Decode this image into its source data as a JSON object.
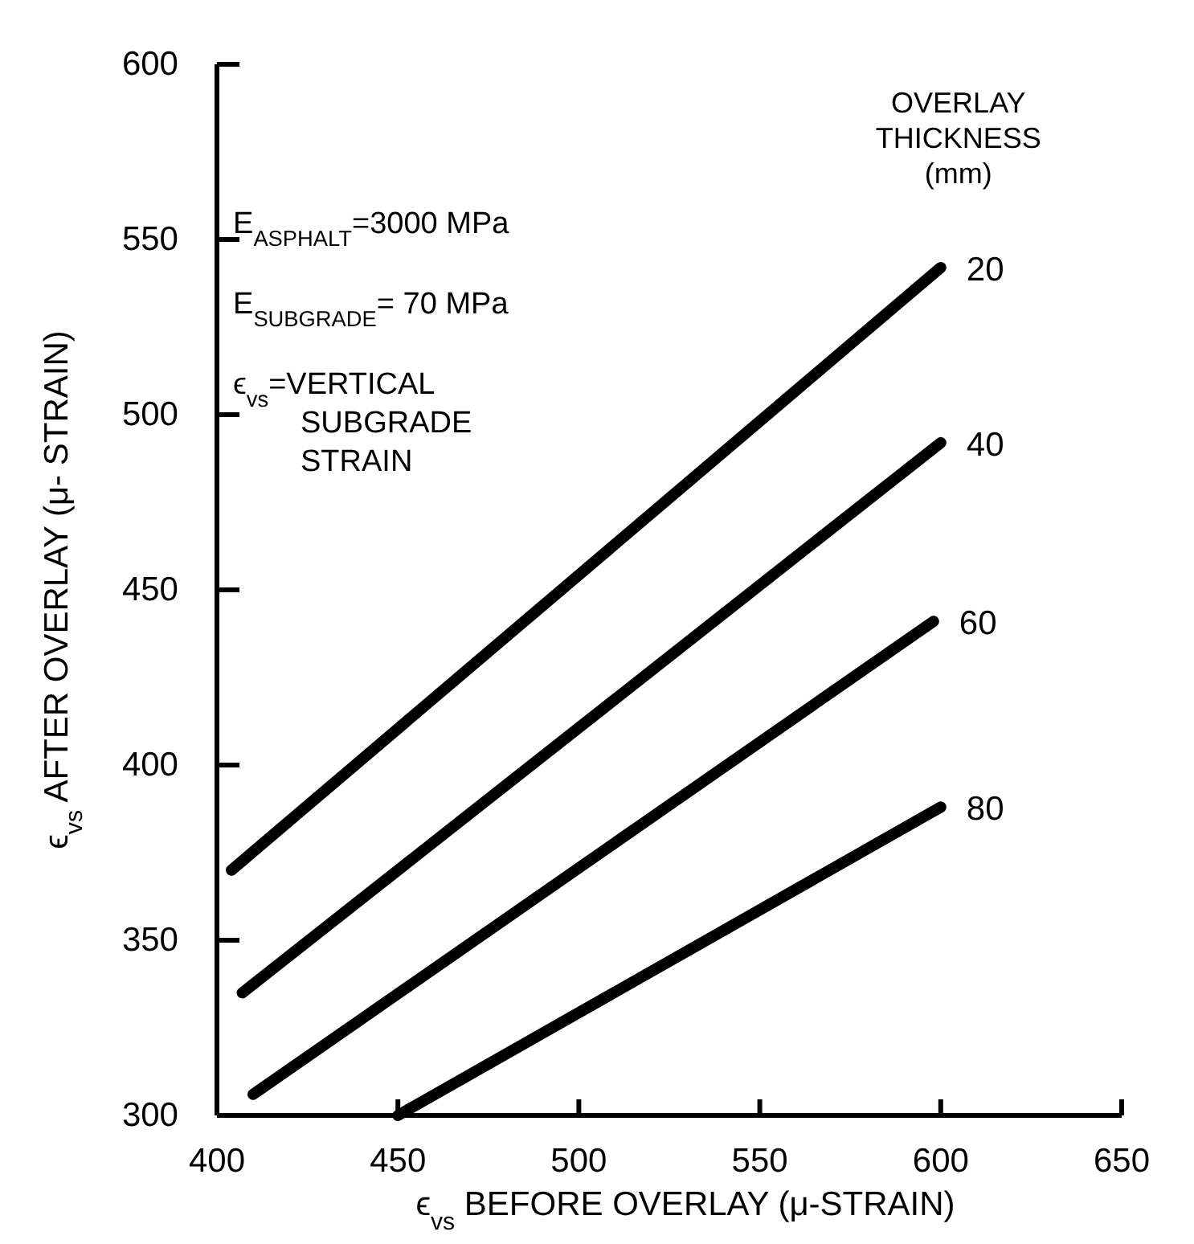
{
  "chart_data": {
    "type": "line",
    "xlabel": "ϵ$_{vs}$ BEFORE OVERLAY (μ-STRAIN)",
    "ylabel": "ϵ$_{vs}$ AFTER OVERLAY (μ- STRAIN)",
    "legend_title": "OVERLAY THICKNESS (mm)",
    "legend": false,
    "grid": false,
    "marker": "none",
    "line_style": "solid",
    "xlim": [
      400,
      650
    ],
    "ylim": [
      300,
      600
    ],
    "xticks": [
      400,
      450,
      500,
      550,
      600,
      650
    ],
    "yticks": [
      300,
      350,
      400,
      450,
      500,
      550,
      600
    ],
    "series": [
      {
        "name": "20",
        "color": "#000000",
        "x": [
          404,
          600
        ],
        "values": [
          370,
          542
        ]
      },
      {
        "name": "40",
        "color": "#000000",
        "x": [
          407,
          600
        ],
        "values": [
          335,
          492
        ]
      },
      {
        "name": "60",
        "color": "#000000",
        "x": [
          410,
          598
        ],
        "values": [
          306,
          441
        ]
      },
      {
        "name": "80",
        "color": "#000000",
        "x": [
          450,
          600
        ],
        "values": [
          300,
          388
        ]
      }
    ],
    "annotations": [
      "E$_{ASPHALT}$=3000 MPa",
      "E$_{SUBGRADE}$= 70 MPa",
      "ϵ$_{vs}$=VERTICAL SUBGRADE STRAIN"
    ]
  }
}
